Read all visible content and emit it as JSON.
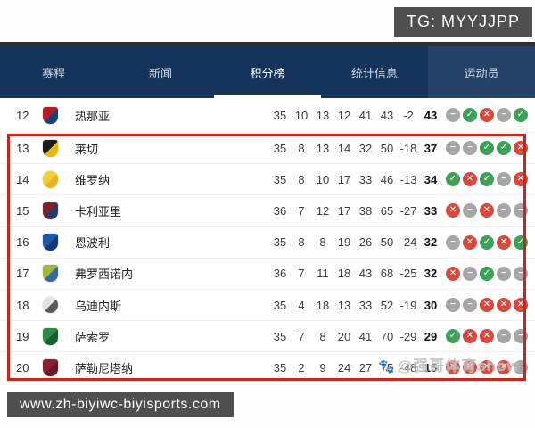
{
  "overlays": {
    "tg_badge": "TG: MYYJJPP",
    "url_badge": "www.zh-biyiwc-biyisports.com",
    "watermark_text": "@强哥体育show",
    "watermark_icon": "🐾"
  },
  "nav": {
    "tabs": [
      {
        "label": "赛程",
        "active": false
      },
      {
        "label": "新闻",
        "active": false
      },
      {
        "label": "积分榜",
        "active": true
      },
      {
        "label": "统计信息",
        "active": false
      },
      {
        "label": "运动员",
        "active": false
      }
    ]
  },
  "table": {
    "form_glyphs": {
      "W": "✓",
      "L": "✕",
      "D": "−"
    },
    "form_colors": {
      "W": "#3fa05a",
      "L": "#d6493f",
      "D": "#a6a6a6"
    },
    "red_zone_color": "#c4271f",
    "rows": [
      {
        "pos": "12",
        "team": "热那亚",
        "played": "35",
        "won": "10",
        "drawn": "13",
        "lost": "12",
        "gf": "41",
        "ga": "43",
        "gd": "-2",
        "pts": "43",
        "form": [
          "D",
          "W",
          "L",
          "D",
          "W"
        ],
        "crest": {
          "shape": "shield",
          "colors": [
            "#b01e2e",
            "#1b3f7a"
          ]
        },
        "in_red_zone": false
      },
      {
        "pos": "13",
        "team": "莱切",
        "played": "35",
        "won": "8",
        "drawn": "13",
        "lost": "14",
        "gf": "32",
        "ga": "50",
        "gd": "-18",
        "pts": "37",
        "form": [
          "D",
          "D",
          "W",
          "W",
          "L"
        ],
        "crest": {
          "shape": "shield",
          "colors": [
            "#1c1c1c",
            "#e8b90a"
          ]
        },
        "in_red_zone": true
      },
      {
        "pos": "14",
        "team": "维罗纳",
        "played": "35",
        "won": "8",
        "drawn": "10",
        "lost": "17",
        "gf": "33",
        "ga": "46",
        "gd": "-13",
        "pts": "34",
        "form": [
          "W",
          "L",
          "W",
          "D",
          "L"
        ],
        "crest": {
          "shape": "wing",
          "colors": [
            "#f2d137",
            "#e7b719"
          ]
        },
        "in_red_zone": true
      },
      {
        "pos": "15",
        "team": "卡利亚里",
        "played": "36",
        "won": "7",
        "drawn": "12",
        "lost": "17",
        "gf": "38",
        "ga": "65",
        "gd": "-27",
        "pts": "33",
        "form": [
          "L",
          "D",
          "L",
          "D",
          "D"
        ],
        "crest": {
          "shape": "shield",
          "colors": [
            "#7c2130",
            "#2a3a63"
          ]
        },
        "in_red_zone": true
      },
      {
        "pos": "16",
        "team": "恩波利",
        "played": "35",
        "won": "8",
        "drawn": "8",
        "lost": "19",
        "gf": "26",
        "ga": "50",
        "gd": "-24",
        "pts": "32",
        "form": [
          "D",
          "L",
          "W",
          "L",
          "W"
        ],
        "crest": {
          "shape": "shield",
          "colors": [
            "#2257a5",
            "#153a77"
          ]
        },
        "in_red_zone": true
      },
      {
        "pos": "17",
        "team": "弗罗西诺内",
        "played": "36",
        "won": "7",
        "drawn": "11",
        "lost": "18",
        "gf": "43",
        "ga": "68",
        "gd": "-25",
        "pts": "32",
        "form": [
          "L",
          "D",
          "W",
          "D",
          "D"
        ],
        "crest": {
          "shape": "shield",
          "colors": [
            "#9fb83c",
            "#3a66a8"
          ]
        },
        "in_red_zone": true
      },
      {
        "pos": "18",
        "team": "乌迪内斯",
        "played": "35",
        "won": "4",
        "drawn": "18",
        "lost": "13",
        "gf": "33",
        "ga": "52",
        "gd": "-19",
        "pts": "30",
        "form": [
          "D",
          "D",
          "L",
          "L",
          "L"
        ],
        "crest": {
          "shape": "circle",
          "colors": [
            "#e3e3e3",
            "#5a5a5a"
          ]
        },
        "in_red_zone": true
      },
      {
        "pos": "19",
        "team": "萨索罗",
        "played": "35",
        "won": "7",
        "drawn": "8",
        "lost": "20",
        "gf": "41",
        "ga": "70",
        "gd": "-29",
        "pts": "29",
        "form": [
          "W",
          "L",
          "L",
          "D",
          "D"
        ],
        "crest": {
          "shape": "shield",
          "colors": [
            "#2e8b47",
            "#1d5c30"
          ]
        },
        "in_red_zone": true
      },
      {
        "pos": "20",
        "team": "萨勒尼塔纳",
        "played": "35",
        "won": "2",
        "drawn": "9",
        "lost": "24",
        "gf": "27",
        "ga": "75",
        "gd": "-48",
        "pts": "15",
        "form": [
          "L",
          "L",
          "L",
          "L",
          "D"
        ],
        "crest": {
          "shape": "shield",
          "colors": [
            "#8a2130",
            "#6d1722"
          ]
        },
        "in_red_zone": true
      }
    ]
  }
}
